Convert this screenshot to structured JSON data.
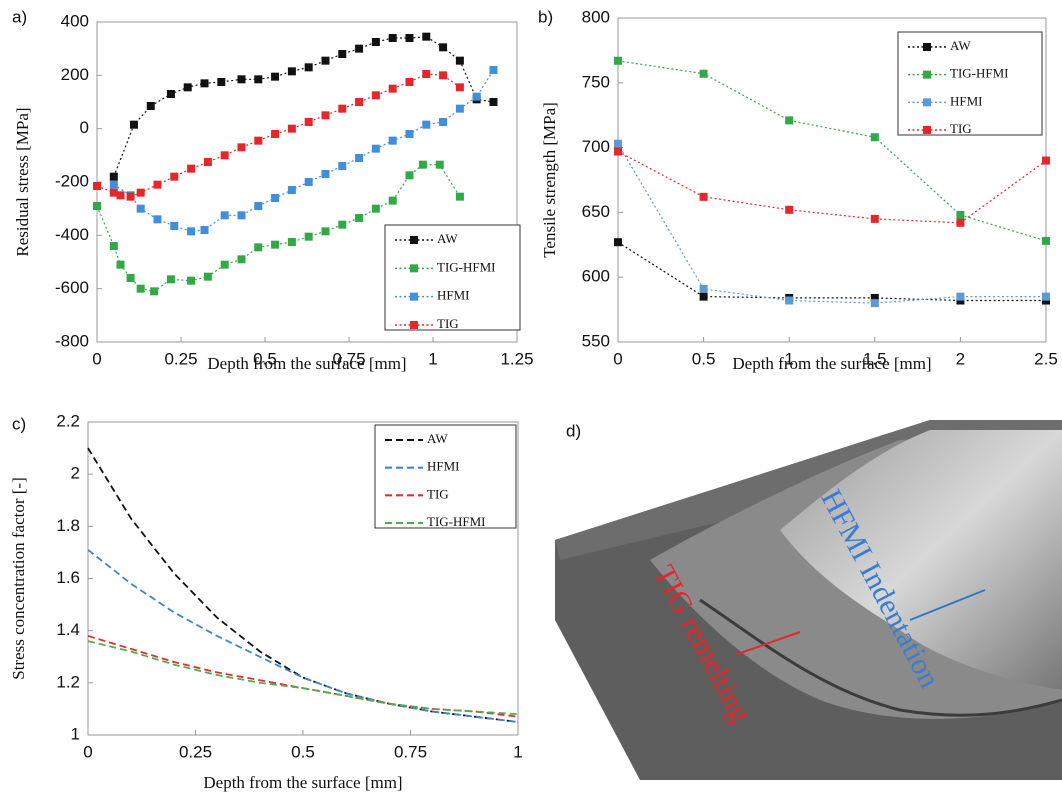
{
  "chart_data": [
    {
      "type": "line",
      "panel_label": "a)",
      "x_label": "Depth from the surface  [mm]",
      "y_label": "Residual stress [MPa]",
      "xlim": [
        0,
        1.25
      ],
      "ylim": [
        -800,
        400
      ],
      "xticks": [
        0,
        0.25,
        0.5,
        0.75,
        1,
        1.25
      ],
      "yticks": [
        -800,
        -600,
        -400,
        -200,
        0,
        200,
        400
      ],
      "grid": false,
      "markers": true,
      "line_style": "dotted",
      "legend": "lower right",
      "series": [
        {
          "name": "AW",
          "color": "#111111",
          "x": [
            0.05,
            0.11,
            0.16,
            0.22,
            0.27,
            0.32,
            0.37,
            0.43,
            0.48,
            0.53,
            0.58,
            0.63,
            0.68,
            0.73,
            0.78,
            0.83,
            0.88,
            0.93,
            0.98,
            1.03,
            1.08,
            1.13,
            1.18
          ],
          "values": [
            -180,
            15,
            85,
            130,
            155,
            170,
            175,
            185,
            185,
            195,
            215,
            230,
            255,
            280,
            300,
            325,
            340,
            340,
            345,
            305,
            255,
            110,
            100
          ]
        },
        {
          "name": "TIG-HFMI",
          "color": "#33a846",
          "x": [
            0,
            0.05,
            0.07,
            0.1,
            0.13,
            0.17,
            0.22,
            0.28,
            0.33,
            0.38,
            0.43,
            0.48,
            0.53,
            0.58,
            0.63,
            0.68,
            0.73,
            0.78,
            0.83,
            0.88,
            0.93,
            0.97,
            1.02,
            1.08
          ],
          "values": [
            -290,
            -440,
            -510,
            -560,
            -600,
            -610,
            -565,
            -570,
            -555,
            -510,
            -490,
            -445,
            -435,
            -425,
            -405,
            -385,
            -360,
            -335,
            -300,
            -270,
            -175,
            -135,
            -135,
            -255
          ]
        },
        {
          "name": "HFMI",
          "color": "#3f8fdb",
          "x": [
            0.05,
            0.1,
            0.13,
            0.18,
            0.23,
            0.28,
            0.32,
            0.38,
            0.43,
            0.48,
            0.53,
            0.58,
            0.63,
            0.68,
            0.73,
            0.78,
            0.83,
            0.88,
            0.93,
            0.98,
            1.03,
            1.08,
            1.13,
            1.18
          ],
          "values": [
            -210,
            -250,
            -300,
            -340,
            -365,
            -385,
            -380,
            -325,
            -325,
            -290,
            -260,
            -230,
            -200,
            -170,
            -140,
            -110,
            -75,
            -45,
            -20,
            15,
            25,
            75,
            120,
            220
          ]
        },
        {
          "name": "TIG",
          "color": "#e5262b",
          "x": [
            0,
            0.05,
            0.07,
            0.1,
            0.13,
            0.18,
            0.23,
            0.28,
            0.33,
            0.38,
            0.43,
            0.48,
            0.53,
            0.58,
            0.63,
            0.68,
            0.73,
            0.78,
            0.83,
            0.88,
            0.93,
            0.98,
            1.03,
            1.08
          ],
          "values": [
            -215,
            -240,
            -250,
            -255,
            -240,
            -210,
            -180,
            -150,
            -125,
            -100,
            -70,
            -45,
            -20,
            0,
            25,
            50,
            75,
            100,
            125,
            150,
            175,
            205,
            200,
            155
          ]
        }
      ]
    },
    {
      "type": "line",
      "panel_label": "b)",
      "x_label": "Depth from the surface  [mm]",
      "y_label": "Tensile strength [MPa]",
      "xlim": [
        0,
        2.5
      ],
      "ylim": [
        550,
        800
      ],
      "xticks": [
        0,
        0.5,
        1,
        1.5,
        2,
        2.5
      ],
      "yticks": [
        550,
        600,
        650,
        700,
        750,
        800
      ],
      "grid": false,
      "markers": true,
      "line_style": "dotted",
      "legend": "upper right",
      "x": [
        0,
        0.5,
        1,
        1.5,
        2,
        2.5
      ],
      "series": [
        {
          "name": "AW",
          "color": "#111111",
          "values": [
            627,
            585,
            584,
            584,
            582,
            582
          ]
        },
        {
          "name": "TIG-HFMI",
          "color": "#33a846",
          "values": [
            767,
            757,
            721,
            708,
            648,
            628
          ]
        },
        {
          "name": "HFMI",
          "color": "#5b9bd5",
          "values": [
            703,
            591,
            582,
            580,
            585,
            585
          ]
        },
        {
          "name": "TIG",
          "color": "#e5262b",
          "values": [
            697,
            662,
            652,
            645,
            642,
            690
          ]
        }
      ]
    },
    {
      "type": "line",
      "panel_label": "c)",
      "x_label": "Depth from the surface [mm]",
      "y_label": "Stress concentration factor [-]",
      "xlim": [
        0,
        1
      ],
      "ylim": [
        1,
        2.2
      ],
      "xticks": [
        0,
        0.25,
        0.5,
        0.75,
        1
      ],
      "yticks": [
        1,
        1.2,
        1.4,
        1.6,
        1.8,
        2,
        2.2
      ],
      "grid": false,
      "markers": false,
      "line_style": "dashed",
      "legend": "upper right",
      "x": [
        0,
        0.1,
        0.2,
        0.3,
        0.4,
        0.5,
        0.6,
        0.7,
        0.8,
        0.9,
        1
      ],
      "series": [
        {
          "name": "AW",
          "color": "#111111",
          "values": [
            2.1,
            1.83,
            1.62,
            1.45,
            1.32,
            1.22,
            1.16,
            1.12,
            1.09,
            1.07,
            1.05
          ]
        },
        {
          "name": "HFMI",
          "color": "#3a86d4",
          "values": [
            1.71,
            1.58,
            1.47,
            1.38,
            1.3,
            1.22,
            1.16,
            1.12,
            1.09,
            1.07,
            1.05
          ]
        },
        {
          "name": "TIG",
          "color": "#e0302a",
          "values": [
            1.38,
            1.33,
            1.28,
            1.24,
            1.21,
            1.18,
            1.15,
            1.12,
            1.1,
            1.09,
            1.07
          ]
        },
        {
          "name": "TIG-HFMI",
          "color": "#4caf50",
          "values": [
            1.36,
            1.32,
            1.27,
            1.23,
            1.2,
            1.18,
            1.15,
            1.12,
            1.1,
            1.09,
            1.08
          ]
        }
      ]
    }
  ],
  "image": {
    "panel_label": "d)",
    "annotations": [
      "TIG remelting",
      "HFMI Indentation"
    ]
  }
}
